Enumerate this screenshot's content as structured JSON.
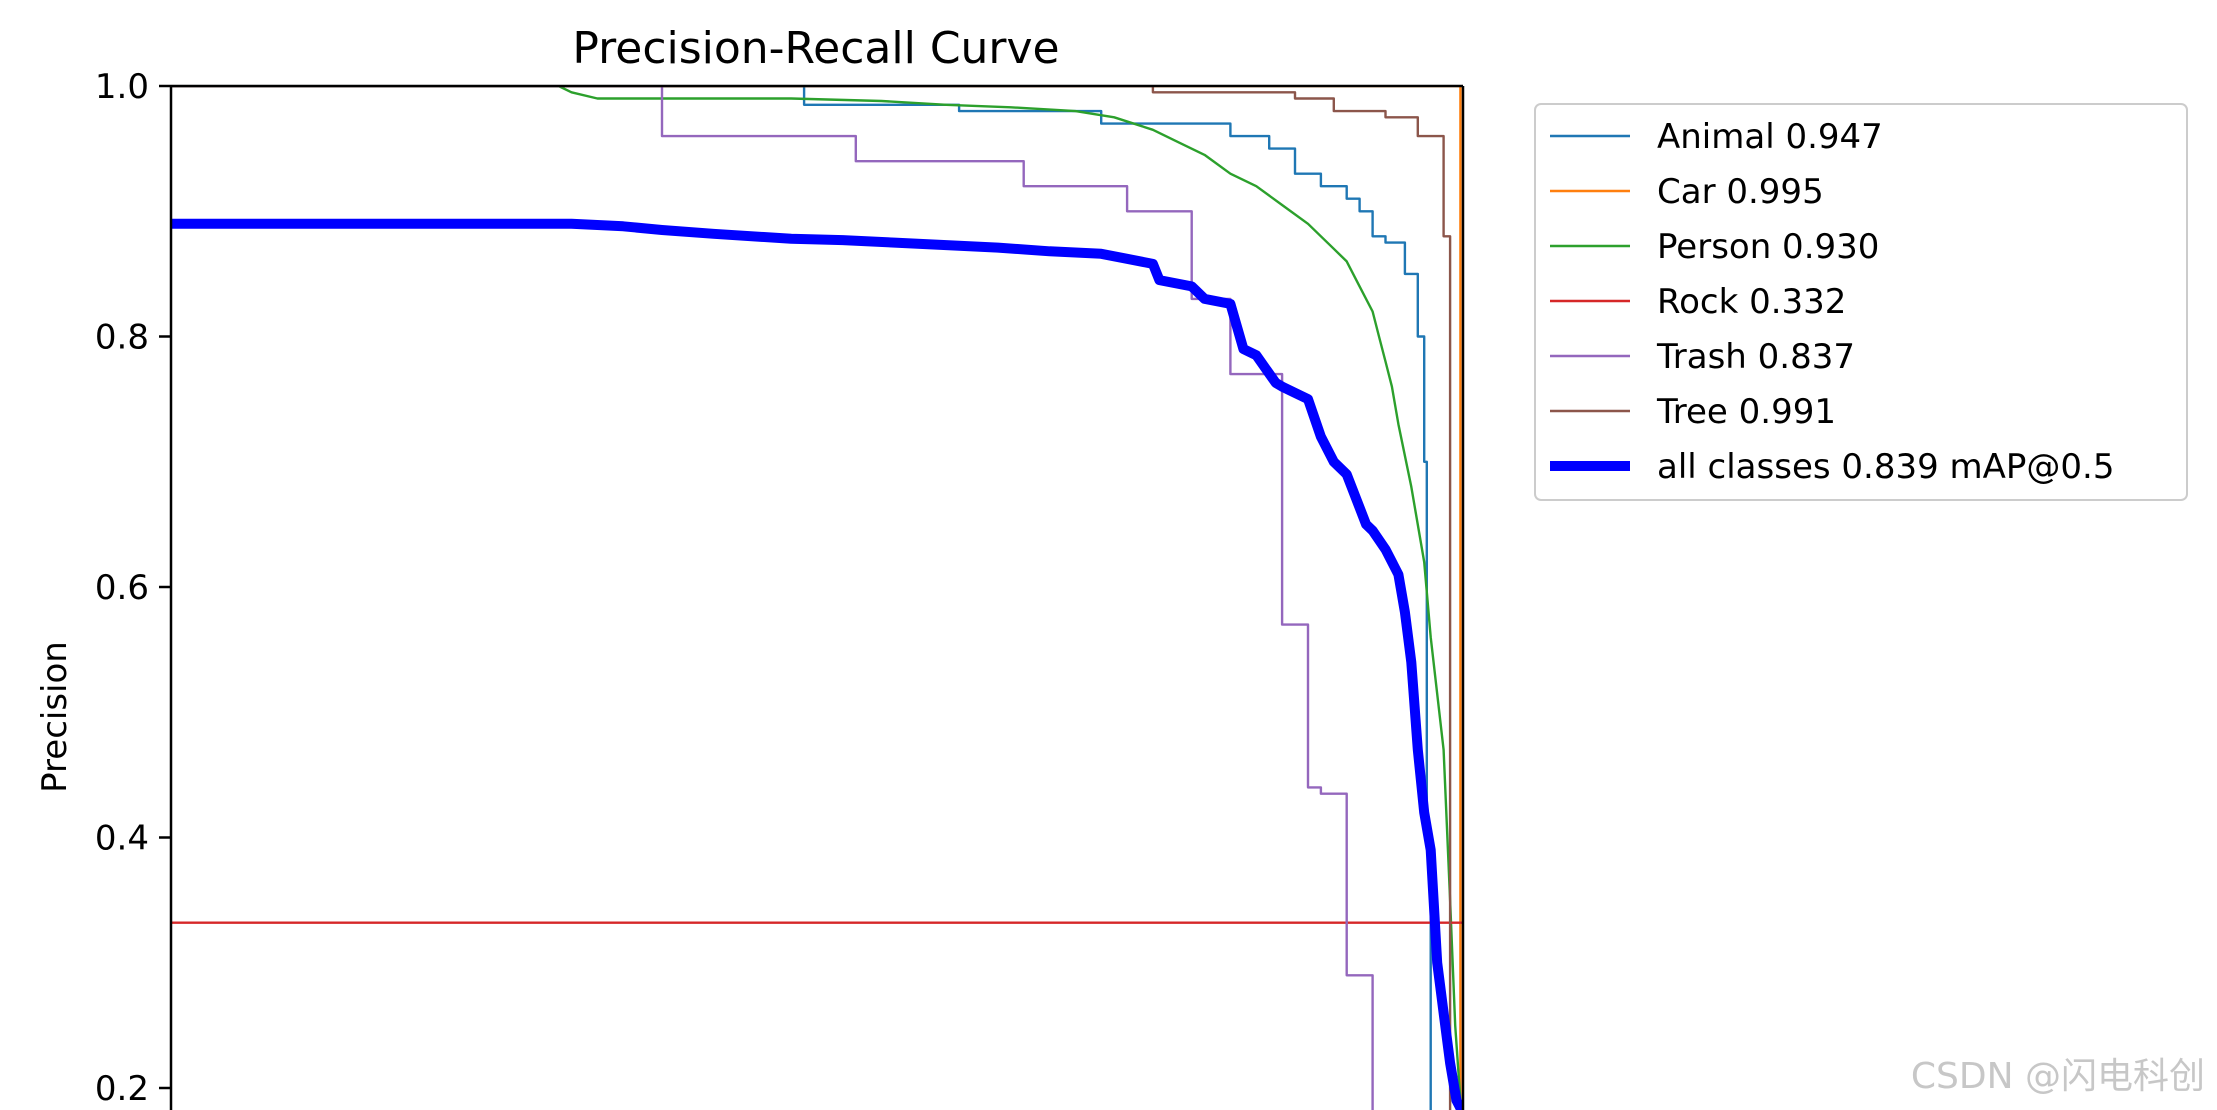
{
  "chart_data": {
    "type": "line",
    "title": "Precision-Recall Curve",
    "xlabel": "",
    "ylabel": "Precision",
    "xlim": [
      0,
      1
    ],
    "ylim": [
      0.18,
      1.0
    ],
    "yticks": [
      0.2,
      0.4,
      0.6,
      0.8,
      1.0
    ],
    "ytick_labels": [
      "0.2",
      "0.4",
      "0.6",
      "0.8",
      "1.0"
    ],
    "grid": false,
    "legend_position": "outside-top-right",
    "series": [
      {
        "name": "Animal 0.947",
        "color": "#1f77b4",
        "width": "thin",
        "recall": [
          0,
          0.4,
          0.4,
          0.49,
          0.49,
          0.61,
          0.61,
          0.72,
          0.72,
          0.82,
          0.82,
          0.85,
          0.85,
          0.87,
          0.87,
          0.89,
          0.89,
          0.91,
          0.91,
          0.92,
          0.92,
          0.93,
          0.93,
          0.94,
          0.94,
          0.955,
          0.955,
          0.965,
          0.965,
          0.97,
          0.97,
          0.972,
          0.972,
          0.975,
          0.975,
          1.0
        ],
        "precision": [
          1.0,
          1.0,
          1.0,
          1.0,
          0.985,
          0.985,
          0.98,
          0.98,
          0.97,
          0.97,
          0.96,
          0.96,
          0.95,
          0.95,
          0.93,
          0.93,
          0.92,
          0.92,
          0.91,
          0.91,
          0.9,
          0.9,
          0.88,
          0.88,
          0.875,
          0.875,
          0.85,
          0.85,
          0.8,
          0.8,
          0.7,
          0.7,
          0.4,
          0.4,
          0.18,
          0.18
        ]
      },
      {
        "name": "Car 0.995",
        "color": "#ff7f0e",
        "width": "thin",
        "recall": [
          0,
          0.998,
          0.998,
          1.0
        ],
        "precision": [
          1.0,
          1.0,
          0.18,
          0.18
        ]
      },
      {
        "name": "Person 0.930",
        "color": "#2ca02c",
        "width": "thin",
        "recall": [
          0,
          0.3,
          0.31,
          0.33,
          0.48,
          0.55,
          0.6,
          0.65,
          0.7,
          0.73,
          0.76,
          0.78,
          0.8,
          0.82,
          0.84,
          0.86,
          0.88,
          0.9,
          0.91,
          0.92,
          0.93,
          0.935,
          0.94,
          0.945,
          0.95,
          0.96,
          0.97,
          0.975,
          0.985,
          0.99,
          0.994,
          0.998,
          1.0
        ],
        "precision": [
          1.0,
          1.0,
          0.995,
          0.99,
          0.99,
          0.988,
          0.985,
          0.983,
          0.98,
          0.975,
          0.965,
          0.955,
          0.945,
          0.93,
          0.92,
          0.905,
          0.89,
          0.87,
          0.86,
          0.84,
          0.82,
          0.8,
          0.78,
          0.76,
          0.73,
          0.68,
          0.62,
          0.56,
          0.47,
          0.35,
          0.25,
          0.19,
          0.18
        ]
      },
      {
        "name": "Rock 0.332",
        "color": "#d62728",
        "width": "thin",
        "recall": [
          0,
          1.0
        ],
        "precision": [
          0.332,
          0.332
        ]
      },
      {
        "name": "Trash 0.837",
        "color": "#9467bd",
        "width": "thin",
        "recall": [
          0,
          0.38,
          0.38,
          0.53,
          0.53,
          0.66,
          0.66,
          0.74,
          0.74,
          0.79,
          0.79,
          0.82,
          0.82,
          0.86,
          0.86,
          0.88,
          0.88,
          0.89,
          0.89,
          0.91,
          0.91,
          0.93,
          0.93,
          0.95,
          0.95,
          1.0
        ],
        "precision": [
          1.0,
          1.0,
          0.96,
          0.96,
          0.94,
          0.94,
          0.92,
          0.92,
          0.9,
          0.9,
          0.83,
          0.83,
          0.77,
          0.77,
          0.57,
          0.57,
          0.44,
          0.44,
          0.435,
          0.435,
          0.29,
          0.29,
          0.18,
          0.18,
          0.18,
          0.18
        ]
      },
      {
        "name": "Tree 0.991",
        "color": "#8c564b",
        "width": "thin",
        "recall": [
          0,
          0.76,
          0.76,
          0.87,
          0.87,
          0.9,
          0.9,
          0.94,
          0.94,
          0.965,
          0.965,
          0.985,
          0.985,
          0.99,
          0.99,
          1.0
        ],
        "precision": [
          1.0,
          1.0,
          0.995,
          0.995,
          0.99,
          0.99,
          0.98,
          0.98,
          0.975,
          0.975,
          0.96,
          0.96,
          0.88,
          0.88,
          0.18,
          0.18
        ]
      },
      {
        "name": "all classes 0.839 mAP@0.5",
        "color": "#0000ff",
        "width": "thick",
        "recall": [
          0,
          0.31,
          0.35,
          0.38,
          0.42,
          0.48,
          0.52,
          0.56,
          0.6,
          0.64,
          0.68,
          0.72,
          0.74,
          0.76,
          0.765,
          0.79,
          0.8,
          0.82,
          0.83,
          0.84,
          0.855,
          0.86,
          0.87,
          0.88,
          0.89,
          0.9,
          0.91,
          0.925,
          0.93,
          0.94,
          0.95,
          0.955,
          0.96,
          0.965,
          0.97,
          0.975,
          0.98,
          0.985,
          0.99,
          0.995,
          1.0
        ],
        "precision": [
          0.89,
          0.89,
          0.888,
          0.885,
          0.882,
          0.878,
          0.877,
          0.875,
          0.873,
          0.871,
          0.868,
          0.866,
          0.862,
          0.858,
          0.845,
          0.84,
          0.83,
          0.826,
          0.79,
          0.785,
          0.763,
          0.76,
          0.755,
          0.75,
          0.72,
          0.7,
          0.69,
          0.65,
          0.645,
          0.63,
          0.61,
          0.58,
          0.54,
          0.47,
          0.42,
          0.39,
          0.3,
          0.26,
          0.22,
          0.19,
          0.18
        ]
      }
    ],
    "watermark": "CSDN @闪电科创"
  }
}
